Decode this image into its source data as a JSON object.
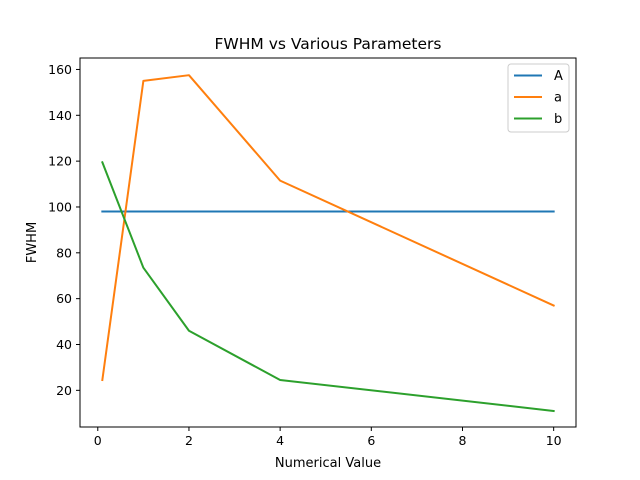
{
  "chart_data": {
    "type": "line",
    "title": "FWHM vs Various Parameters",
    "xlabel": "Numerical Value",
    "ylabel": "FWHM",
    "xlim": [
      -0.39,
      10.49
    ],
    "ylim": [
      4,
      165
    ],
    "xticks": [
      0,
      2,
      4,
      6,
      8,
      10
    ],
    "yticks": [
      20,
      40,
      60,
      80,
      100,
      120,
      140,
      160
    ],
    "grid": false,
    "legend_position": "top-right",
    "series": [
      {
        "name": "A",
        "color": "#1f77b4",
        "x": [
          0.1,
          1,
          2,
          4,
          10
        ],
        "y": [
          98,
          98,
          98,
          98,
          98
        ]
      },
      {
        "name": "a",
        "color": "#ff7f0e",
        "x": [
          0.1,
          1,
          2,
          4,
          10
        ],
        "y": [
          24.5,
          155,
          157.5,
          111.5,
          57
        ]
      },
      {
        "name": "b",
        "color": "#2ca02c",
        "x": [
          0.1,
          1,
          2,
          4,
          10
        ],
        "y": [
          119.5,
          73.5,
          46,
          24.5,
          11
        ]
      }
    ]
  }
}
